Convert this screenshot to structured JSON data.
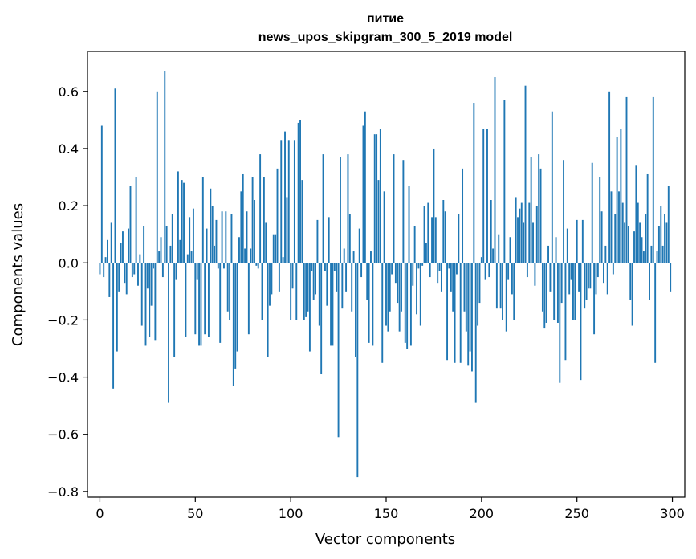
{
  "chart_data": {
    "type": "bar",
    "title": [
      "питие",
      "news_upos_skipgram_300_5_2019 model"
    ],
    "xlabel": "Vector components",
    "ylabel": "Components values",
    "xlim": [
      -6.5,
      306.5
    ],
    "ylim": [
      -0.82,
      0.74
    ],
    "xticks": [
      0,
      50,
      100,
      150,
      200,
      250,
      300
    ],
    "xtick_labels": [
      "0",
      "50",
      "100",
      "150",
      "200",
      "250",
      "300"
    ],
    "yticks": [
      -0.8,
      -0.6,
      -0.4,
      -0.2,
      0.0,
      0.2,
      0.4,
      0.6
    ],
    "ytick_labels": [
      "−0.8",
      "−0.6",
      "−0.4",
      "−0.2",
      "0.0",
      "0.2",
      "0.4",
      "0.6"
    ],
    "grid": false,
    "bar_color": "#1f77b4",
    "x_start": 0,
    "values": [
      -0.04,
      0.48,
      -0.05,
      0.02,
      0.08,
      -0.12,
      0.14,
      -0.44,
      0.61,
      -0.31,
      -0.1,
      0.07,
      0.11,
      -0.07,
      -0.11,
      0.12,
      0.27,
      -0.05,
      -0.04,
      0.3,
      -0.08,
      0.03,
      -0.22,
      0.13,
      -0.29,
      -0.09,
      -0.26,
      -0.15,
      -0.02,
      -0.27,
      0.6,
      0.04,
      0.09,
      -0.05,
      0.67,
      0.13,
      -0.49,
      0.06,
      0.17,
      -0.33,
      -0.06,
      0.32,
      0.08,
      0.29,
      0.28,
      -0.26,
      0.03,
      0.16,
      0.04,
      0.19,
      -0.25,
      -0.06,
      -0.29,
      -0.29,
      0.3,
      -0.25,
      0.12,
      -0.26,
      0.26,
      0.2,
      0.06,
      0.15,
      -0.02,
      -0.28,
      0.18,
      -0.02,
      0.18,
      -0.17,
      -0.2,
      0.17,
      -0.43,
      -0.37,
      -0.31,
      0.09,
      0.25,
      0.31,
      0.05,
      0.18,
      -0.25,
      0.05,
      0.3,
      0.22,
      -0.01,
      -0.02,
      0.38,
      -0.2,
      0.3,
      0.14,
      -0.33,
      -0.15,
      -0.11,
      0.1,
      0.1,
      0.33,
      -0.1,
      0.43,
      0.02,
      0.46,
      0.23,
      0.43,
      -0.2,
      -0.09,
      0.43,
      -0.2,
      0.49,
      0.5,
      0.29,
      -0.2,
      -0.19,
      -0.17,
      -0.31,
      -0.03,
      -0.13,
      -0.11,
      0.15,
      -0.22,
      -0.39,
      0.38,
      -0.03,
      -0.15,
      0.16,
      -0.29,
      -0.29,
      -0.03,
      -0.1,
      -0.61,
      0.37,
      -0.16,
      0.05,
      -0.1,
      0.38,
      0.17,
      -0.17,
      0.04,
      -0.33,
      -0.75,
      0.12,
      -0.05,
      0.48,
      0.53,
      -0.13,
      -0.28,
      0.04,
      -0.29,
      0.45,
      0.45,
      0.29,
      0.47,
      -0.35,
      0.25,
      -0.22,
      -0.24,
      -0.17,
      -0.04,
      0.38,
      -0.07,
      -0.14,
      -0.24,
      -0.17,
      0.36,
      -0.28,
      -0.3,
      0.27,
      -0.29,
      -0.08,
      0.13,
      -0.18,
      -0.02,
      -0.22,
      -0.01,
      0.2,
      0.07,
      0.21,
      -0.05,
      0.16,
      0.4,
      0.16,
      -0.07,
      -0.03,
      -0.1,
      0.22,
      0.18,
      -0.34,
      -0.02,
      -0.1,
      -0.17,
      -0.35,
      -0.04,
      0.17,
      -0.35,
      0.33,
      -0.17,
      -0.24,
      -0.36,
      -0.31,
      -0.38,
      0.56,
      -0.49,
      -0.22,
      -0.14,
      0.02,
      0.47,
      -0.06,
      0.47,
      -0.05,
      0.22,
      0.05,
      0.65,
      -0.16,
      0.1,
      -0.16,
      -0.2,
      0.57,
      -0.24,
      -0.06,
      0.09,
      -0.11,
      -0.2,
      0.23,
      0.16,
      0.19,
      0.21,
      0.14,
      0.62,
      -0.05,
      0.21,
      0.37,
      0.14,
      -0.08,
      0.2,
      0.38,
      0.33,
      -0.17,
      -0.23,
      -0.21,
      0.06,
      -0.1,
      0.53,
      -0.2,
      0.09,
      -0.21,
      -0.42,
      -0.14,
      0.36,
      -0.34,
      0.12,
      -0.11,
      -0.06,
      -0.2,
      -0.2,
      0.15,
      -0.1,
      -0.41,
      0.15,
      -0.16,
      -0.13,
      -0.09,
      -0.09,
      0.35,
      -0.25,
      -0.11,
      -0.05,
      0.3,
      0.18,
      -0.07,
      0.06,
      -0.11,
      0.6,
      0.25,
      -0.04,
      0.17,
      0.44,
      0.25,
      0.47,
      0.21,
      0.14,
      0.58,
      0.13,
      -0.13,
      -0.22,
      0.11,
      0.34,
      0.21,
      0.14,
      0.09,
      0.04,
      0.17,
      0.31,
      -0.13,
      0.06,
      0.58,
      -0.35,
      0.04,
      0.13,
      0.2,
      0.06,
      0.17,
      0.14,
      0.27,
      -0.1
    ]
  }
}
